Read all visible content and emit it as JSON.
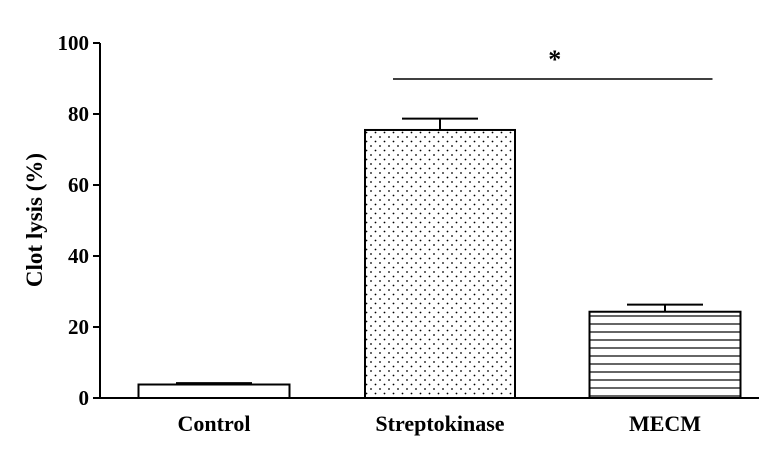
{
  "chart_data": {
    "type": "bar",
    "title": "",
    "xlabel": "",
    "ylabel": "Clot lysis (%)",
    "ylim": [
      0,
      100
    ],
    "yticks": [
      0,
      20,
      40,
      60,
      80,
      100
    ],
    "categories": [
      "Control",
      "Streptokinase",
      "MECM"
    ],
    "values": [
      3.8,
      75.5,
      24.3
    ],
    "errors": [
      0.4,
      3.2,
      2.0
    ],
    "patterns": [
      "none",
      "dots",
      "horizontal-lines"
    ],
    "significance": {
      "label": "*",
      "from": "Streptokinase",
      "to": "MECM"
    },
    "grid": false,
    "legend": "none",
    "colors": {
      "bar_fill": "#ffffff",
      "stroke": "#000000"
    }
  }
}
